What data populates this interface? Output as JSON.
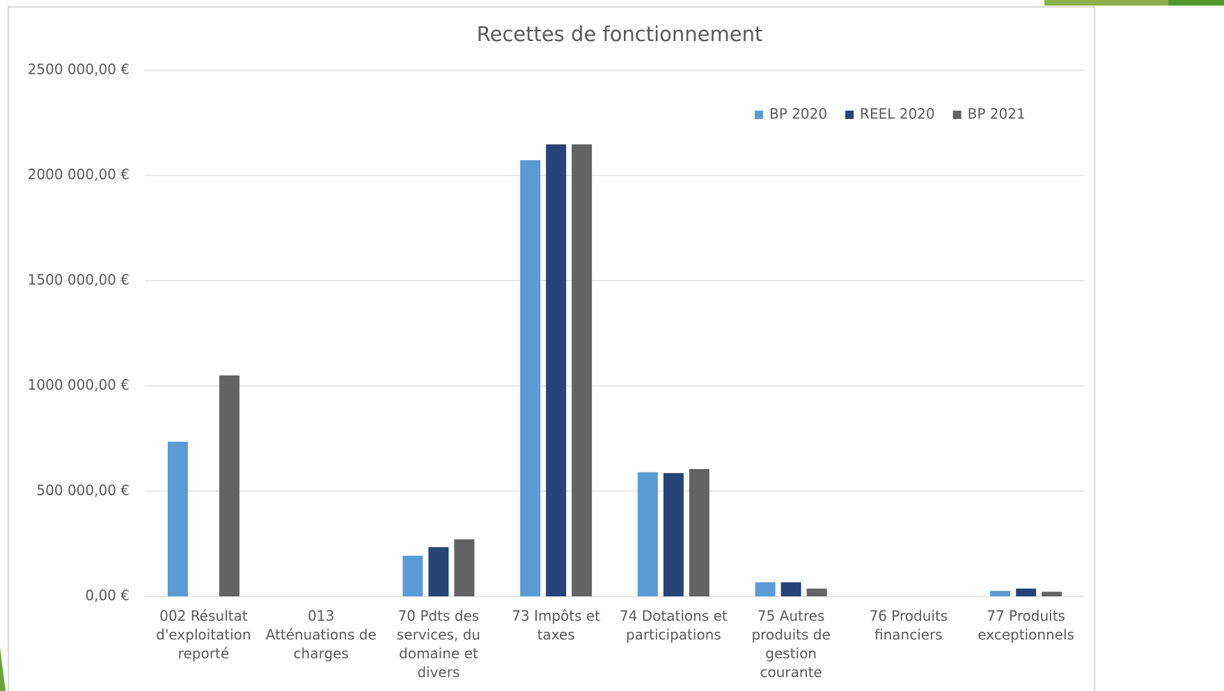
{
  "chart_data": {
    "type": "bar",
    "title": "Recettes de fonctionnement",
    "categories": [
      "002 Résultat d'exploitation reporté",
      "013 Atténuations de charges",
      "70 Pdts des services, du domaine et divers",
      "73 Impôts et taxes",
      "74 Dotations et participations",
      "75 Autres produits de gestion courante",
      "76 Produits financiers",
      "77 Produits exceptionnels"
    ],
    "series": [
      {
        "name": "BP 2020",
        "color": "#5b9bd5",
        "values": [
          735000,
          0,
          193000,
          2073000,
          590000,
          67000,
          0,
          26000
        ]
      },
      {
        "name": "REEL 2020",
        "color": "#264478",
        "values": [
          0,
          0,
          234000,
          2148000,
          586000,
          67000,
          0,
          37000
        ]
      },
      {
        "name": "BP 2021",
        "color": "#636363",
        "values": [
          1050000,
          0,
          271000,
          2148000,
          605000,
          37000,
          0,
          22000
        ]
      }
    ],
    "ylim": [
      0,
      2500000
    ],
    "yticks": [
      {
        "value": 0,
        "label": "0,00 €"
      },
      {
        "value": 500000,
        "label": "500 000,00 €"
      },
      {
        "value": 1000000,
        "label": "1000 000,00 €"
      },
      {
        "value": 1500000,
        "label": "1500 000,00 €"
      },
      {
        "value": 2000000,
        "label": "2000 000,00 €"
      },
      {
        "value": 2500000,
        "label": "2500 000,00 €"
      }
    ],
    "grid": true,
    "legend": "top-right"
  }
}
